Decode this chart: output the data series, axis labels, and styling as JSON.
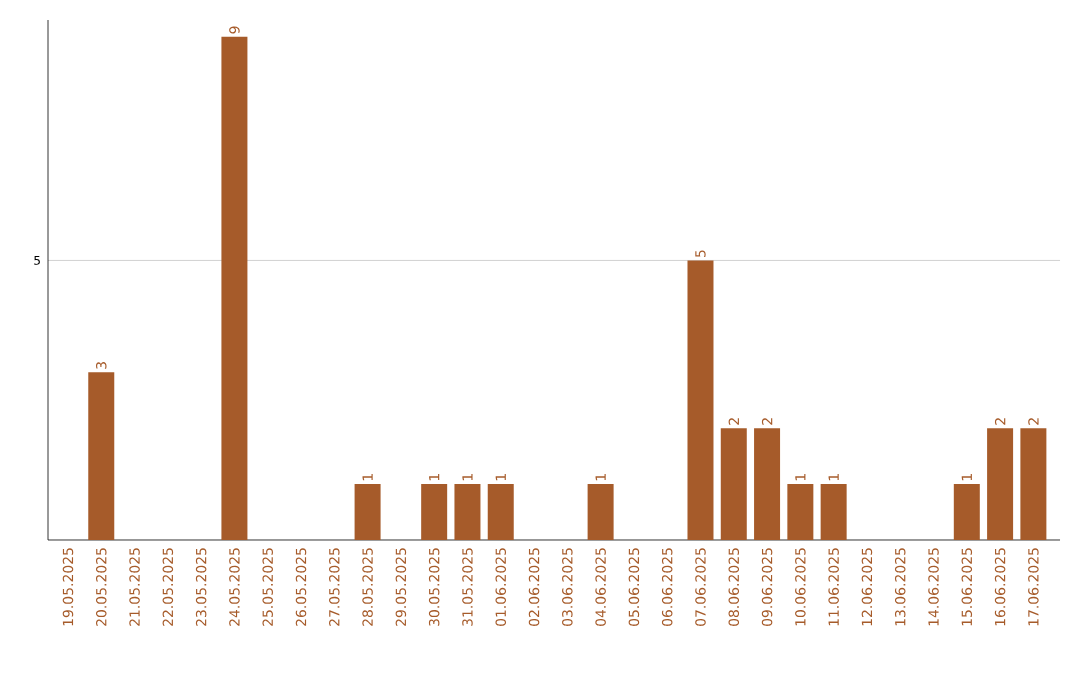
{
  "chart_data": {
    "type": "bar",
    "categories": [
      "19.05.2025",
      "20.05.2025",
      "21.05.2025",
      "22.05.2025",
      "23.05.2025",
      "24.05.2025",
      "25.05.2025",
      "26.05.2025",
      "27.05.2025",
      "28.05.2025",
      "29.05.2025",
      "30.05.2025",
      "31.05.2025",
      "01.06.2025",
      "02.06.2025",
      "03.06.2025",
      "04.06.2025",
      "05.06.2025",
      "06.06.2025",
      "07.06.2025",
      "08.06.2025",
      "09.06.2025",
      "10.06.2025",
      "11.06.2025",
      "12.06.2025",
      "13.06.2025",
      "14.06.2025",
      "15.06.2025",
      "16.06.2025",
      "17.06.2025"
    ],
    "values": [
      0,
      3,
      0,
      0,
      0,
      9,
      0,
      0,
      0,
      1,
      0,
      1,
      1,
      1,
      0,
      0,
      1,
      0,
      0,
      5,
      2,
      2,
      1,
      1,
      0,
      0,
      0,
      1,
      2,
      2
    ],
    "value_labels": [
      null,
      "3",
      null,
      null,
      null,
      "9",
      null,
      null,
      null,
      "1",
      null,
      "1",
      "1",
      "1",
      null,
      null,
      "1",
      null,
      null,
      "5",
      "2",
      "2",
      "1",
      "1",
      null,
      null,
      null,
      "1",
      "2",
      "2"
    ],
    "color": "#a65b2a",
    "ylim": [
      0,
      9.3
    ],
    "yticks": [
      5
    ],
    "grid": "y"
  }
}
